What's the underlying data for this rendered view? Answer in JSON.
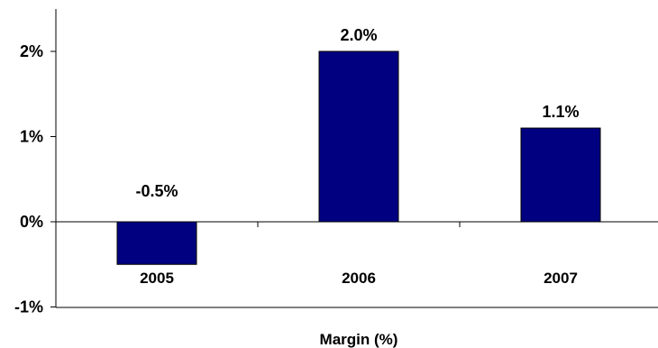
{
  "chart_data": {
    "type": "bar",
    "categories": [
      "2005",
      "2006",
      "2007"
    ],
    "values": [
      -0.5,
      2.0,
      1.1
    ],
    "data_labels": [
      "-0.5%",
      "2.0%",
      "1.1%"
    ],
    "title": "",
    "xlabel": "Margin (%)",
    "ylabel": "",
    "ylim": [
      -1,
      3
    ],
    "yticks": [
      {
        "value": -1,
        "label": "-1%"
      },
      {
        "value": 0,
        "label": "0%"
      },
      {
        "value": 1,
        "label": "1%"
      },
      {
        "value": 2,
        "label": "2%"
      }
    ],
    "grid": false,
    "legend": "none",
    "bar_color": "#000080"
  }
}
